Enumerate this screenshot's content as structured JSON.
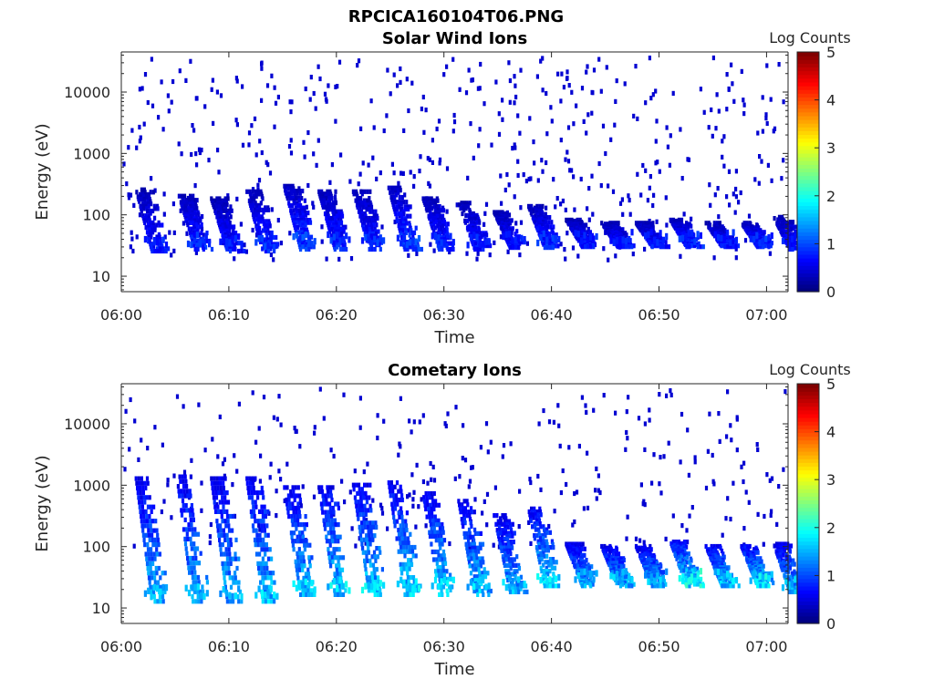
{
  "figure_title": "RPCICA160104T06.PNG",
  "colorbar": {
    "label": "Log Counts",
    "ticks": [
      0,
      1,
      2,
      3,
      4,
      5
    ]
  },
  "chart_data": [
    {
      "type": "heatmap",
      "title": "Solar Wind Ions",
      "xlabel": "Time",
      "ylabel": "Energy (eV)",
      "x_ticks": [
        "06:00",
        "06:10",
        "06:20",
        "06:30",
        "06:40",
        "06:50",
        "07:00"
      ],
      "x_range": [
        "06:00",
        "07:02"
      ],
      "y_scale": "log",
      "y_ticks": [
        10,
        100,
        1000,
        10000
      ],
      "y_range": [
        5.6,
        45000
      ],
      "z_label": "Log Counts",
      "z_range": [
        0,
        5
      ],
      "colormap": "jet",
      "bursts": [
        {
          "t": "06:01.5",
          "e_top": 280,
          "e_bottom": 28,
          "peak": 0.9
        },
        {
          "t": "06:05.5",
          "e_top": 220,
          "e_bottom": 30,
          "peak": 1.0
        },
        {
          "t": "06:08.5",
          "e_top": 200,
          "e_bottom": 28,
          "peak": 0.9
        },
        {
          "t": "06:11.8",
          "e_top": 260,
          "e_bottom": 28,
          "peak": 1.0
        },
        {
          "t": "06:15.3",
          "e_top": 320,
          "e_bottom": 30,
          "peak": 1.1
        },
        {
          "t": "06:18.5",
          "e_top": 260,
          "e_bottom": 30,
          "peak": 1.0
        },
        {
          "t": "06:21.7",
          "e_top": 260,
          "e_bottom": 30,
          "peak": 1.0
        },
        {
          "t": "06:25.0",
          "e_top": 300,
          "e_bottom": 30,
          "peak": 1.1
        },
        {
          "t": "06:28.2",
          "e_top": 200,
          "e_bottom": 30,
          "peak": 1.0
        },
        {
          "t": "06:31.5",
          "e_top": 170,
          "e_bottom": 30,
          "peak": 0.9
        },
        {
          "t": "06:34.8",
          "e_top": 120,
          "e_bottom": 32,
          "peak": 0.9
        },
        {
          "t": "06:38.0",
          "e_top": 150,
          "e_bottom": 32,
          "peak": 1.0
        },
        {
          "t": "06:41.5",
          "e_top": 90,
          "e_bottom": 33,
          "peak": 0.9
        },
        {
          "t": "06:44.8",
          "e_top": 80,
          "e_bottom": 33,
          "peak": 0.9
        },
        {
          "t": "06:48.0",
          "e_top": 80,
          "e_bottom": 33,
          "peak": 0.9
        },
        {
          "t": "06:51.2",
          "e_top": 90,
          "e_bottom": 33,
          "peak": 1.0
        },
        {
          "t": "06:54.5",
          "e_top": 80,
          "e_bottom": 33,
          "peak": 0.9
        },
        {
          "t": "06:57.8",
          "e_top": 80,
          "e_bottom": 33,
          "peak": 1.0
        },
        {
          "t": "07:00.8",
          "e_top": 100,
          "e_bottom": 30,
          "peak": 0.9
        }
      ],
      "background": "sparse single-count pixels between 20 eV and 40000 eV"
    },
    {
      "type": "heatmap",
      "title": "Cometary Ions",
      "xlabel": "Time",
      "ylabel": "Energy (eV)",
      "x_ticks": [
        "06:00",
        "06:10",
        "06:20",
        "06:30",
        "06:40",
        "06:50",
        "07:00"
      ],
      "x_range": [
        "06:00",
        "07:02"
      ],
      "y_scale": "log",
      "y_ticks": [
        10,
        100,
        1000,
        10000
      ],
      "y_range": [
        5.6,
        45000
      ],
      "z_label": "Log Counts",
      "z_range": [
        0,
        5
      ],
      "colormap": "jet",
      "bursts": [
        {
          "t": "06:01.5",
          "e_top": 1400,
          "e_bottom": 14,
          "peak": 1.8
        },
        {
          "t": "06:05.3",
          "e_top": 1500,
          "e_bottom": 14,
          "peak": 1.8
        },
        {
          "t": "06:08.5",
          "e_top": 1400,
          "e_bottom": 14,
          "peak": 1.8
        },
        {
          "t": "06:11.8",
          "e_top": 1400,
          "e_bottom": 14,
          "peak": 1.9
        },
        {
          "t": "06:15.3",
          "e_top": 1000,
          "e_bottom": 18,
          "peak": 1.9
        },
        {
          "t": "06:18.5",
          "e_top": 1000,
          "e_bottom": 18,
          "peak": 2.0
        },
        {
          "t": "06:21.7",
          "e_top": 1100,
          "e_bottom": 18,
          "peak": 2.0
        },
        {
          "t": "06:25.0",
          "e_top": 1200,
          "e_bottom": 18,
          "peak": 2.0
        },
        {
          "t": "06:28.2",
          "e_top": 800,
          "e_bottom": 18,
          "peak": 2.0
        },
        {
          "t": "06:31.5",
          "e_top": 600,
          "e_bottom": 18,
          "peak": 1.9
        },
        {
          "t": "06:34.8",
          "e_top": 350,
          "e_bottom": 20,
          "peak": 1.8
        },
        {
          "t": "06:38.0",
          "e_top": 450,
          "e_bottom": 25,
          "peak": 2.0
        },
        {
          "t": "06:41.5",
          "e_top": 120,
          "e_bottom": 25,
          "peak": 1.8
        },
        {
          "t": "06:44.8",
          "e_top": 110,
          "e_bottom": 25,
          "peak": 1.8
        },
        {
          "t": "06:48.0",
          "e_top": 110,
          "e_bottom": 25,
          "peak": 1.8
        },
        {
          "t": "06:51.2",
          "e_top": 130,
          "e_bottom": 25,
          "peak": 2.2
        },
        {
          "t": "06:54.5",
          "e_top": 110,
          "e_bottom": 25,
          "peak": 1.9
        },
        {
          "t": "06:57.8",
          "e_top": 110,
          "e_bottom": 25,
          "peak": 2.1
        },
        {
          "t": "07:00.8",
          "e_top": 120,
          "e_bottom": 20,
          "peak": 1.8
        }
      ],
      "background": "sparse single-count pixels between 100 eV and 30000 eV"
    }
  ]
}
